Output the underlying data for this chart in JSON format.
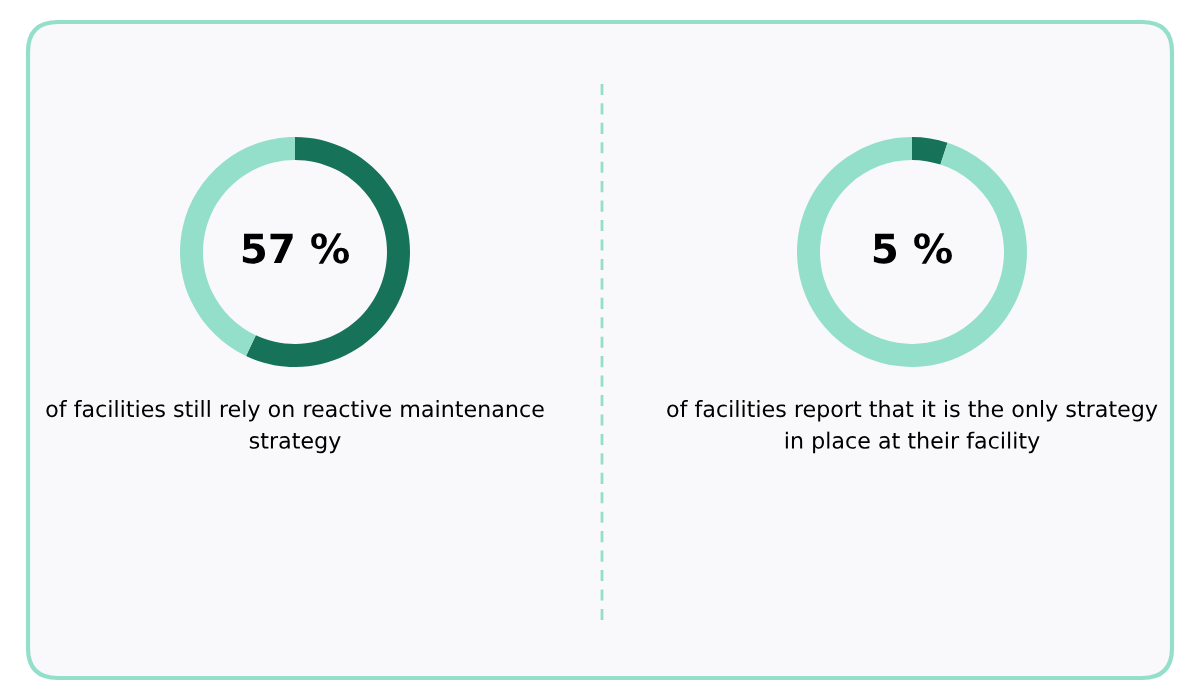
{
  "chart_data": [
    {
      "type": "donut",
      "categories": [
        null,
        null
      ],
      "values": [
        57,
        43
      ],
      "colors": [
        "#16735a",
        "#94dfc9"
      ],
      "value_labels": [
        "57 %",
        null
      ],
      "annotations": [
        "of facilities still rely on reactive maintenance strategy"
      ]
    },
    {
      "type": "donut",
      "categories": [
        null,
        null
      ],
      "values": [
        5,
        95
      ],
      "colors": [
        "#16735a",
        "#94dfc9"
      ],
      "value_labels": [
        "5 %",
        null
      ],
      "annotations": [
        "of facilities report that it is the only strategy in place at their facility"
      ]
    }
  ]
}
